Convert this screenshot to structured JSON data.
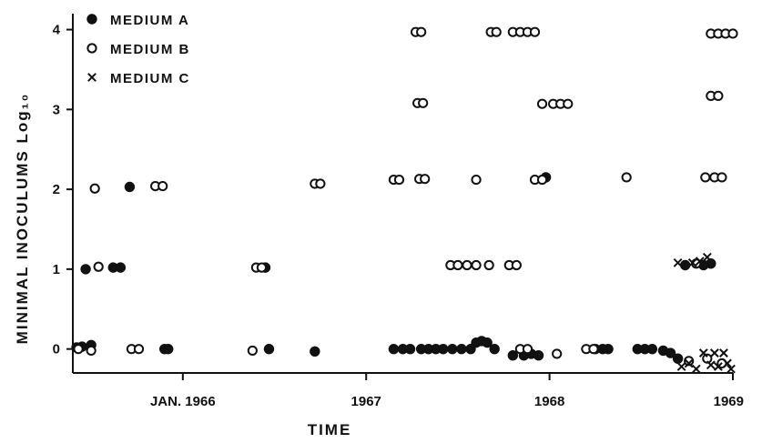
{
  "chart_data": {
    "type": "scatter",
    "title": "",
    "xlabel": "TIME",
    "ylabel": "MINIMAL INOCULUMS Log₁₀",
    "x_tick_labels": [
      "JAN. 1966",
      "1967",
      "1968",
      "1969"
    ],
    "x_tick_values": [
      1966,
      1967,
      1968,
      1969
    ],
    "xlim": [
      1965.4,
      1969.0
    ],
    "y_tick_labels": [
      "0",
      "1",
      "2",
      "3",
      "4"
    ],
    "y_tick_values": [
      0,
      1,
      2,
      3,
      4
    ],
    "ylim": [
      -0.3,
      4.2
    ],
    "legend_position": "top-left",
    "series": [
      {
        "name": "MEDIUM A",
        "marker": "filled-circle",
        "points": [
          [
            1965.42,
            0.02
          ],
          [
            1965.45,
            0.03
          ],
          [
            1965.47,
            1.0
          ],
          [
            1965.5,
            0.05
          ],
          [
            1965.62,
            1.02
          ],
          [
            1965.66,
            1.02
          ],
          [
            1965.71,
            2.03
          ],
          [
            1965.9,
            0.0
          ],
          [
            1965.92,
            0.0
          ],
          [
            1966.45,
            1.02
          ],
          [
            1966.47,
            0.0
          ],
          [
            1966.72,
            -0.03
          ],
          [
            1967.15,
            0.0
          ],
          [
            1967.2,
            0.0
          ],
          [
            1967.24,
            0.0
          ],
          [
            1967.3,
            0.0
          ],
          [
            1967.34,
            0.0
          ],
          [
            1967.38,
            0.0
          ],
          [
            1967.42,
            0.0
          ],
          [
            1967.47,
            0.0
          ],
          [
            1967.52,
            0.0
          ],
          [
            1967.57,
            0.0
          ],
          [
            1967.6,
            0.08
          ],
          [
            1967.63,
            0.1
          ],
          [
            1967.66,
            0.08
          ],
          [
            1967.7,
            0.0
          ],
          [
            1967.8,
            -0.08
          ],
          [
            1967.86,
            -0.08
          ],
          [
            1967.9,
            -0.06
          ],
          [
            1967.94,
            -0.08
          ],
          [
            1967.98,
            2.15
          ],
          [
            1968.25,
            0.0
          ],
          [
            1968.29,
            0.0
          ],
          [
            1968.32,
            0.0
          ],
          [
            1968.48,
            0.0
          ],
          [
            1968.52,
            0.0
          ],
          [
            1968.56,
            0.0
          ],
          [
            1968.62,
            -0.02
          ],
          [
            1968.66,
            -0.05
          ],
          [
            1968.7,
            -0.12
          ],
          [
            1968.74,
            1.05
          ],
          [
            1968.84,
            1.05
          ],
          [
            1968.88,
            1.07
          ]
        ]
      },
      {
        "name": "MEDIUM B",
        "marker": "open-circle",
        "points": [
          [
            1965.43,
            0.0
          ],
          [
            1965.5,
            -0.02
          ],
          [
            1965.52,
            2.01
          ],
          [
            1965.54,
            1.03
          ],
          [
            1965.72,
            0.0
          ],
          [
            1965.76,
            0.0
          ],
          [
            1965.85,
            2.04
          ],
          [
            1965.89,
            2.04
          ],
          [
            1966.38,
            -0.02
          ],
          [
            1966.4,
            1.02
          ],
          [
            1966.43,
            1.02
          ],
          [
            1966.72,
            2.07
          ],
          [
            1966.75,
            2.07
          ],
          [
            1967.15,
            2.12
          ],
          [
            1967.18,
            2.12
          ],
          [
            1967.27,
            3.97
          ],
          [
            1967.3,
            3.97
          ],
          [
            1967.28,
            3.08
          ],
          [
            1967.31,
            3.08
          ],
          [
            1967.29,
            2.13
          ],
          [
            1967.32,
            2.13
          ],
          [
            1967.46,
            1.05
          ],
          [
            1967.5,
            1.05
          ],
          [
            1967.55,
            1.05
          ],
          [
            1967.6,
            1.05
          ],
          [
            1967.6,
            2.12
          ],
          [
            1967.67,
            1.05
          ],
          [
            1967.68,
            3.97
          ],
          [
            1967.71,
            3.97
          ],
          [
            1967.78,
            1.05
          ],
          [
            1967.82,
            1.05
          ],
          [
            1967.8,
            3.97
          ],
          [
            1967.84,
            3.97
          ],
          [
            1967.88,
            3.97
          ],
          [
            1967.92,
            3.97
          ],
          [
            1967.84,
            0.0
          ],
          [
            1967.88,
            0.0
          ],
          [
            1967.92,
            2.12
          ],
          [
            1967.96,
            2.12
          ],
          [
            1967.96,
            3.07
          ],
          [
            1968.02,
            3.07
          ],
          [
            1968.06,
            3.07
          ],
          [
            1968.1,
            3.07
          ],
          [
            1968.04,
            -0.06
          ],
          [
            1968.2,
            0.0
          ],
          [
            1968.24,
            0.0
          ],
          [
            1968.42,
            2.15
          ],
          [
            1968.8,
            1.07
          ],
          [
            1968.85,
            2.15
          ],
          [
            1968.9,
            2.15
          ],
          [
            1968.94,
            2.15
          ],
          [
            1968.88,
            3.17
          ],
          [
            1968.92,
            3.17
          ],
          [
            1968.88,
            3.95
          ],
          [
            1968.92,
            3.95
          ],
          [
            1968.96,
            3.95
          ],
          [
            1969.0,
            3.95
          ],
          [
            1968.76,
            -0.15
          ],
          [
            1968.86,
            -0.12
          ],
          [
            1968.94,
            -0.18
          ]
        ]
      },
      {
        "name": "MEDIUM C",
        "marker": "cross",
        "points": [
          [
            1968.7,
            1.08
          ],
          [
            1968.78,
            1.08
          ],
          [
            1968.82,
            1.1
          ],
          [
            1968.86,
            1.15
          ],
          [
            1968.72,
            -0.22
          ],
          [
            1968.76,
            -0.18
          ],
          [
            1968.8,
            -0.25
          ],
          [
            1968.84,
            -0.05
          ],
          [
            1968.88,
            -0.2
          ],
          [
            1968.9,
            -0.05
          ],
          [
            1968.92,
            -0.22
          ],
          [
            1968.95,
            -0.05
          ],
          [
            1968.97,
            -0.18
          ],
          [
            1968.99,
            -0.25
          ]
        ]
      }
    ]
  }
}
